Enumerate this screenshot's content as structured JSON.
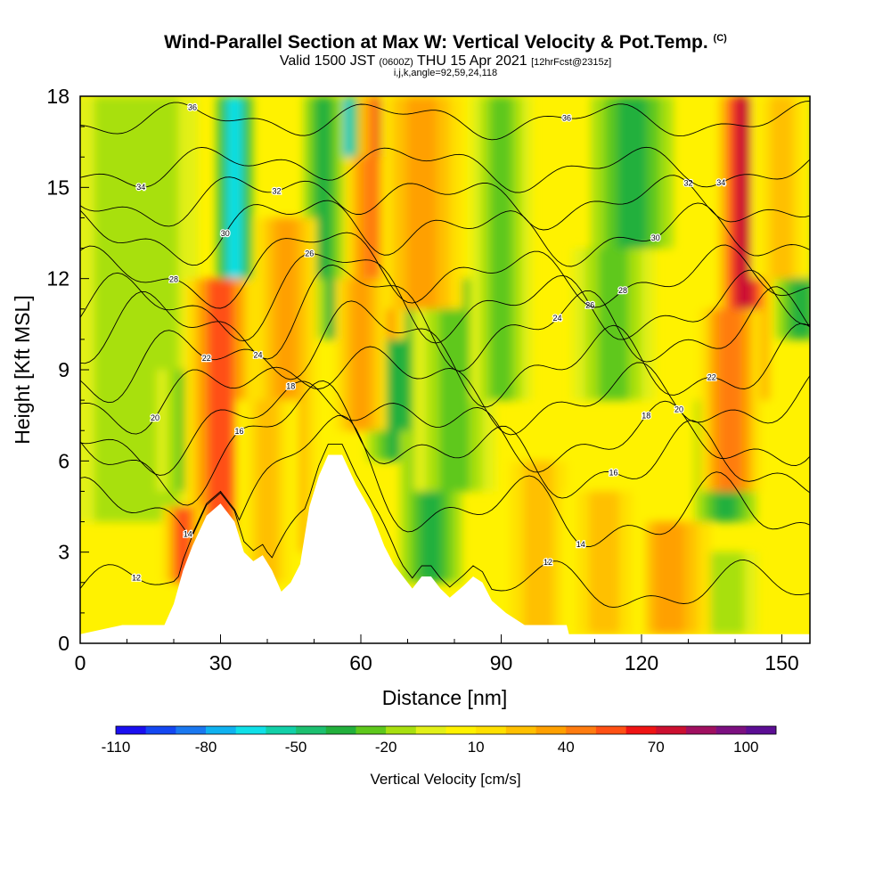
{
  "header": {
    "title_main": "Wind-Parallel Section at Max W: Vertical Velocity & Pot.Temp.",
    "title_copyright": "(C)",
    "subtitle_part1": "Valid 1500 JST",
    "subtitle_utc": "(0600Z)",
    "subtitle_part2": "THU 15 Apr 2021",
    "subtitle_fcst": "[12hrFcst@2315z]",
    "params_line": "i,j,k,angle=92,59,24,118"
  },
  "colors": {
    "scale": [
      "#1a0ff0",
      "#1447f2",
      "#1a78f0",
      "#10b2f0",
      "#10e0e8",
      "#12d0a8",
      "#1cc070",
      "#22b03c",
      "#5ec81c",
      "#a8e010",
      "#e2f018",
      "#fff200",
      "#ffe000",
      "#ffc000",
      "#ffa000",
      "#ff7c10",
      "#ff5014",
      "#ef1414",
      "#cc1030",
      "#a01060",
      "#7c1080",
      "#5c0e94"
    ],
    "terrain": "#ffffff",
    "contour": "#000000"
  },
  "chart_data": {
    "type": "heatmap",
    "xlabel": "Distance [nm]",
    "ylabel": "Height [Kft MSL]",
    "xlim": [
      0,
      156
    ],
    "ylim": [
      0,
      18
    ],
    "x_ticks": [
      0,
      30,
      60,
      90,
      120,
      150
    ],
    "y_ticks": [
      0,
      3,
      6,
      9,
      12,
      15,
      18
    ],
    "colorbar": {
      "label": "Vertical Velocity [cm/s]",
      "range": [
        -110,
        110
      ],
      "tick_labels": [
        -110,
        -80,
        -50,
        -20,
        10,
        40,
        70,
        100
      ]
    },
    "terrain_profile": [
      [
        0,
        0.3
      ],
      [
        9,
        0.6
      ],
      [
        18,
        0.6
      ],
      [
        20,
        1.3
      ],
      [
        22,
        2.4
      ],
      [
        24,
        3.2
      ],
      [
        27,
        4.2
      ],
      [
        30,
        4.6
      ],
      [
        33,
        4.0
      ],
      [
        35,
        3.0
      ],
      [
        37,
        2.7
      ],
      [
        39,
        2.9
      ],
      [
        41,
        2.4
      ],
      [
        43,
        1.7
      ],
      [
        45,
        2.0
      ],
      [
        47,
        2.6
      ],
      [
        49,
        4.5
      ],
      [
        51,
        5.5
      ],
      [
        53,
        6.2
      ],
      [
        56,
        6.2
      ],
      [
        59,
        5.2
      ],
      [
        62,
        4.4
      ],
      [
        65,
        3.2
      ],
      [
        67,
        2.6
      ],
      [
        69,
        2.2
      ],
      [
        71,
        1.8
      ],
      [
        73,
        2.2
      ],
      [
        75,
        2.2
      ],
      [
        77,
        1.8
      ],
      [
        79,
        1.5
      ],
      [
        82,
        1.9
      ],
      [
        84,
        2.2
      ],
      [
        86,
        2.0
      ],
      [
        88,
        1.4
      ],
      [
        91,
        1.0
      ],
      [
        95,
        0.6
      ],
      [
        104,
        0.6
      ],
      [
        104.5,
        0.3
      ],
      [
        156,
        0.3
      ]
    ],
    "updraft_columns": [
      {
        "x": 30,
        "w": 3.5,
        "y0": 3.5,
        "y1": 12.0,
        "v": 55
      },
      {
        "x": 22,
        "w": 2.0,
        "y0": 2.0,
        "y1": 4.5,
        "v": 50
      },
      {
        "x": 66,
        "w": 3.0,
        "y0": 13.0,
        "y1": 18.0,
        "v": 70
      },
      {
        "x": 63,
        "w": 3.0,
        "y0": 10.0,
        "y1": 16.0,
        "v": 45
      },
      {
        "x": 60,
        "w": 2.5,
        "y0": 7.0,
        "y1": 12.0,
        "v": 30
      },
      {
        "x": 44,
        "w": 3.0,
        "y0": 3.0,
        "y1": 14.0,
        "v": 30
      },
      {
        "x": 142,
        "w": 2.5,
        "y0": 8.0,
        "y1": 18.0,
        "v": 78
      },
      {
        "x": 139,
        "w": 3.0,
        "y0": 5.0,
        "y1": 11.0,
        "v": 45
      },
      {
        "x": 73,
        "w": 4.0,
        "y0": 11.0,
        "y1": 18.0,
        "v": 32
      },
      {
        "x": 150,
        "w": 3.0,
        "y0": 12.0,
        "y1": 18.0,
        "v": 28
      },
      {
        "x": 98,
        "w": 4.0,
        "y0": 0.3,
        "y1": 6.0,
        "v": 28
      },
      {
        "x": 126,
        "w": 4.0,
        "y0": 0.3,
        "y1": 4.0,
        "v": 32
      },
      {
        "x": 112,
        "w": 4.0,
        "y0": 0.3,
        "y1": 5.0,
        "v": 25
      },
      {
        "x": 40,
        "w": 3.0,
        "y0": 2.0,
        "y1": 8.0,
        "v": 25
      }
    ],
    "downdraft_columns": [
      {
        "x": 33,
        "w": 1.8,
        "y0": 11.0,
        "y1": 18.0,
        "v": -65
      },
      {
        "x": 55,
        "w": 2.5,
        "y0": 13.0,
        "y1": 18.0,
        "v": -75
      },
      {
        "x": 57,
        "w": 3.0,
        "y0": 10.0,
        "y1": 14.0,
        "v": -50
      },
      {
        "x": 29,
        "w": 2.5,
        "y0": 5.5,
        "y1": 8.5,
        "v": -45
      },
      {
        "x": 52,
        "w": 2.0,
        "y0": 12.0,
        "y1": 18.0,
        "v": -40
      },
      {
        "x": 70,
        "w": 2.5,
        "y0": 13.0,
        "y1": 18.0,
        "v": -45
      },
      {
        "x": 68,
        "w": 3.0,
        "y0": 6.0,
        "y1": 11.0,
        "v": -32
      },
      {
        "x": 75,
        "w": 3.0,
        "y0": 2.0,
        "y1": 7.0,
        "v": -35
      },
      {
        "x": 80,
        "w": 4.0,
        "y0": 5.0,
        "y1": 12.0,
        "v": -28
      },
      {
        "x": 90,
        "w": 3.0,
        "y0": 8.0,
        "y1": 18.0,
        "v": -28
      },
      {
        "x": 118,
        "w": 4.0,
        "y0": 13.0,
        "y1": 18.0,
        "v": -35
      },
      {
        "x": 114,
        "w": 4.0,
        "y0": 8.0,
        "y1": 13.0,
        "v": -28
      },
      {
        "x": 138,
        "w": 3.0,
        "y0": 4.0,
        "y1": 8.0,
        "v": -32
      },
      {
        "x": 154,
        "w": 2.5,
        "y0": 10.0,
        "y1": 18.0,
        "v": -40
      },
      {
        "x": 12,
        "w": 6.0,
        "y0": 4.0,
        "y1": 18.0,
        "v": -18
      },
      {
        "x": 23,
        "w": 3.0,
        "y0": 5.0,
        "y1": 9.0,
        "v": -25
      },
      {
        "x": 104,
        "w": 3.0,
        "y0": 0.3,
        "y1": 4.0,
        "v": -25
      },
      {
        "x": 136,
        "w": 4.0,
        "y0": 0.3,
        "y1": 3.0,
        "v": -20
      }
    ],
    "theta_contours": [
      {
        "label": "12",
        "base": 1.8,
        "amp": 0.6
      },
      {
        "label": "14",
        "base": 4.2,
        "amp": 0.9
      },
      {
        "label": "16",
        "base": 5.9,
        "amp": 0.9
      },
      {
        "label": "18",
        "base": 6.7,
        "amp": 0.8
      },
      {
        "label": "20",
        "base": 8.0,
        "amp": 0.8
      },
      {
        "label": "22",
        "base": 9.1,
        "amp": 0.9
      },
      {
        "label": "24",
        "base": 10.3,
        "amp": 0.9
      },
      {
        "label": "26",
        "base": 11.0,
        "amp": 0.8
      },
      {
        "label": "28",
        "base": 12.0,
        "amp": 0.7
      },
      {
        "label": "30",
        "base": 13.4,
        "amp": 0.7
      },
      {
        "label": "32",
        "base": 14.5,
        "amp": 0.6
      },
      {
        "label": "34",
        "base": 15.6,
        "amp": 0.5
      },
      {
        "label": "36",
        "base": 17.2,
        "amp": 0.4
      }
    ]
  }
}
